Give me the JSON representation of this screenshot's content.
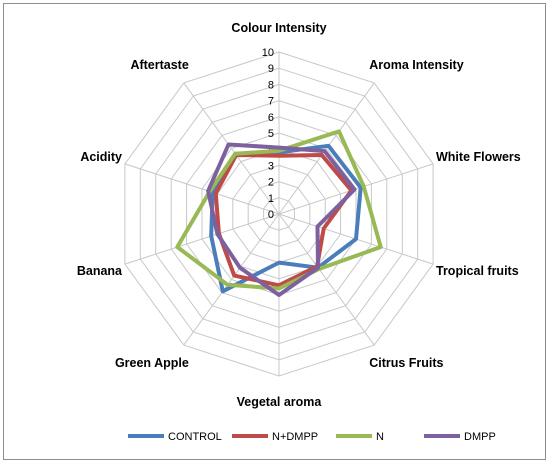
{
  "chart_data": {
    "type": "radar",
    "title": "",
    "categories": [
      "Colour Intensity",
      "Aroma Intensity",
      "White Flowers",
      "Tropical fruits",
      "Citrus Fruits",
      "Vegetal aroma",
      "Green Apple",
      "Banana",
      "Acidity",
      "Aftertaste"
    ],
    "rlim": [
      0,
      10
    ],
    "ticks": [
      0,
      1,
      2,
      3,
      4,
      5,
      6,
      7,
      8,
      9,
      10
    ],
    "grid": true,
    "legend_position": "bottom",
    "series": [
      {
        "name": "CONTROL",
        "color": "#4a7ebb",
        "values": [
          3.8,
          5.2,
          5.3,
          5.0,
          4.1,
          3.0,
          5.9,
          4.4,
          4.3,
          4.6
        ]
      },
      {
        "name": "N+DMPP",
        "color": "#be4b48",
        "values": [
          3.6,
          4.5,
          4.7,
          2.9,
          4.0,
          4.4,
          4.7,
          3.9,
          4.1,
          4.5
        ]
      },
      {
        "name": "N",
        "color": "#98b954",
        "values": [
          3.9,
          6.3,
          5.5,
          6.6,
          4.2,
          4.6,
          5.4,
          6.6,
          4.5,
          4.6
        ]
      },
      {
        "name": "DMPP",
        "color": "#7d60a0",
        "values": [
          4.1,
          4.8,
          4.9,
          2.5,
          4.1,
          5.0,
          4.1,
          4.0,
          4.6,
          5.3
        ]
      }
    ]
  }
}
